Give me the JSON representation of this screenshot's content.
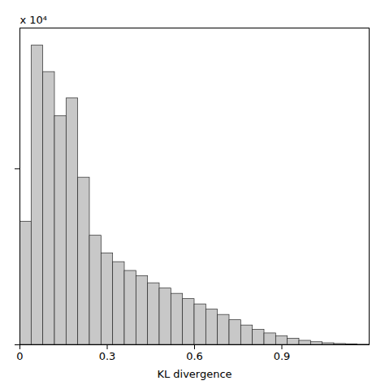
{
  "chart_data": {
    "type": "histogram",
    "xlabel": "KL divergence",
    "bins": [
      0,
      0.04,
      0.08,
      0.12,
      0.16,
      0.2,
      0.24,
      0.28,
      0.32,
      0.36,
      0.4,
      0.44,
      0.48,
      0.52,
      0.56,
      0.6,
      0.64,
      0.68,
      0.72,
      0.76,
      0.8,
      0.84,
      0.88,
      0.92,
      0.96,
      1,
      1.04,
      1.08,
      1.12,
      1.16,
      1.2
    ],
    "values": [
      7000,
      17000,
      15500,
      13000,
      14000,
      9500,
      6200,
      5200,
      4700,
      4200,
      3900,
      3500,
      3200,
      2900,
      2600,
      2300,
      2000,
      1700,
      1400,
      1100,
      850,
      650,
      480,
      350,
      230,
      150,
      90,
      50,
      25,
      10
    ],
    "color": "#c8c8c8",
    "xlim": [
      0,
      1.2
    ],
    "xticks": [
      0,
      0.3,
      0.6,
      0.9
    ],
    "ylim": [
      0,
      18000
    ],
    "yticks": [
      0,
      10000
    ],
    "tick_labels": "x",
    "annotations": [
      "x 10⁴"
    ]
  }
}
